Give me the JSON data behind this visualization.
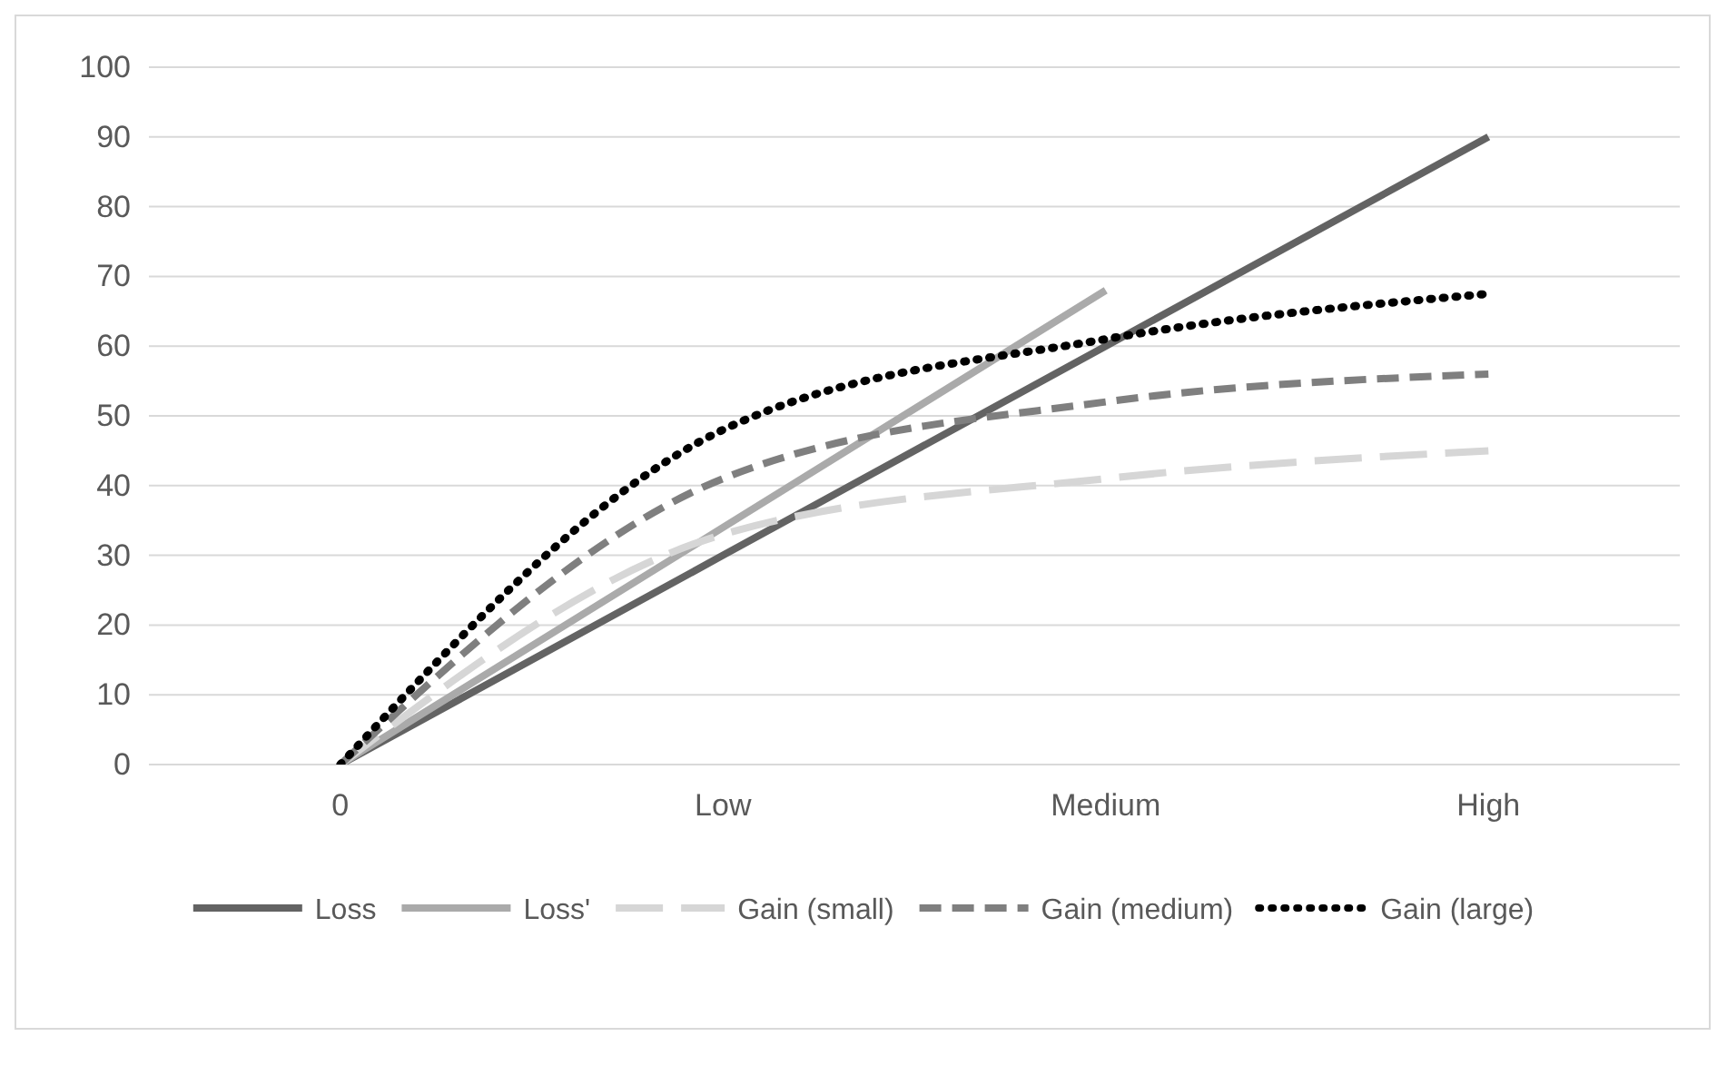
{
  "chart_data": {
    "type": "line",
    "categories": [
      "0",
      "Low",
      "Medium",
      "High"
    ],
    "ylim": [
      0,
      100
    ],
    "yticks": [
      0,
      10,
      20,
      30,
      40,
      50,
      60,
      70,
      80,
      90,
      100
    ],
    "grid": "y",
    "legend": "bottom",
    "marker": "none",
    "series": [
      {
        "name": "Loss",
        "color": "#636363",
        "line_style": "solid",
        "values": [
          0,
          30,
          60,
          90
        ]
      },
      {
        "name": "Loss'",
        "color": "#aaaaaa",
        "line_style": "solid",
        "values": [
          0,
          34,
          68,
          null
        ]
      },
      {
        "name": "Gain (small)",
        "color": "#d6d6d6",
        "line_style": "longdash",
        "values": [
          0,
          33,
          41,
          45
        ]
      },
      {
        "name": "Gain (medium)",
        "color": "#7f7f7f",
        "line_style": "dashed",
        "values": [
          0,
          41,
          52,
          56
        ]
      },
      {
        "name": "Gain (large)",
        "color": "#000000",
        "line_style": "dotted",
        "values": [
          0,
          48,
          61,
          67.5
        ]
      }
    ]
  }
}
